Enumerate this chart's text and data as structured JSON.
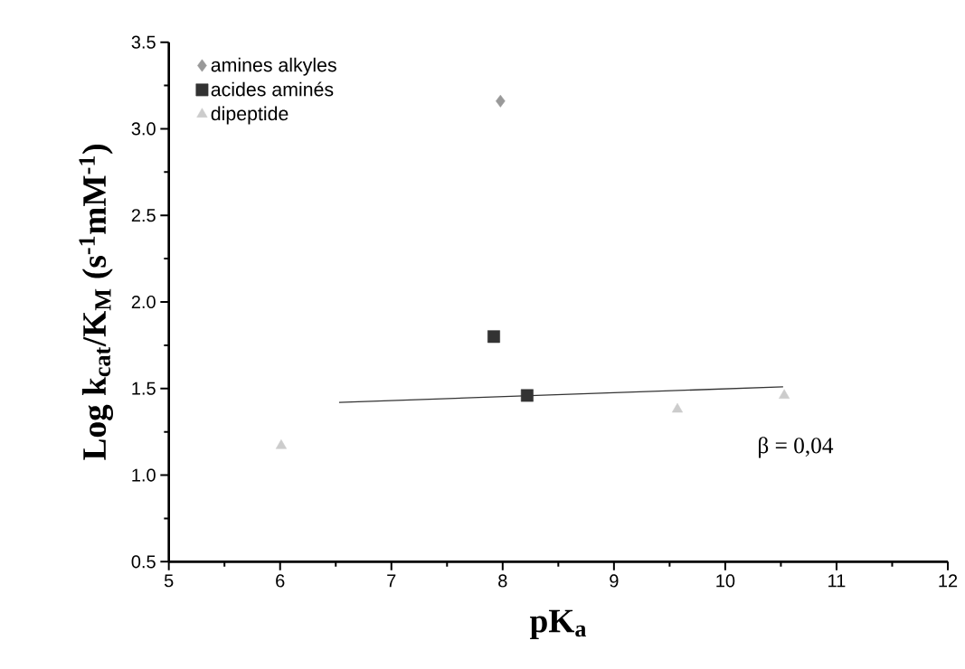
{
  "chart_data": {
    "type": "scatter",
    "xlabel": "pK$_{a}$",
    "ylabel": "Log k$_{cat}$/K$_{M}$ (s$^{-1}$mM$^{-1}$)",
    "xlim": [
      5,
      12
    ],
    "xticks": [
      5,
      6,
      7,
      8,
      9,
      10,
      11,
      12
    ],
    "ylim": [
      0.5,
      3.5
    ],
    "yticks": [
      0.5,
      {
        "value": 1,
        "label": "1.0"
      },
      1.5,
      {
        "value": 2,
        "label": "2.0"
      },
      2.5,
      {
        "value": 3,
        "label": "3.0"
      },
      3.5
    ],
    "legend": "top left",
    "grid": false,
    "series": [
      {
        "name": "amines alkyles",
        "color": "#999999",
        "marker": "diamond",
        "x": [
          7.98
        ],
        "values": [
          3.16
        ]
      },
      {
        "name": "acides aminés",
        "color": "#333333",
        "marker": "square",
        "x": [
          7.92,
          8.22
        ],
        "values": [
          1.8,
          1.46
        ]
      },
      {
        "name": "dipeptide",
        "color": "#cccccc",
        "marker": "triangle",
        "x": [
          6.01,
          9.57,
          10.53
        ],
        "values": [
          1.17,
          1.38,
          1.46
        ]
      },
      {
        "type": "line",
        "color": "#333333",
        "marker": "none",
        "x": [
          6.53,
          10.52
        ],
        "values": [
          1.42,
          1.51
        ]
      }
    ],
    "annotations": [
      "β = 0,04"
    ]
  }
}
